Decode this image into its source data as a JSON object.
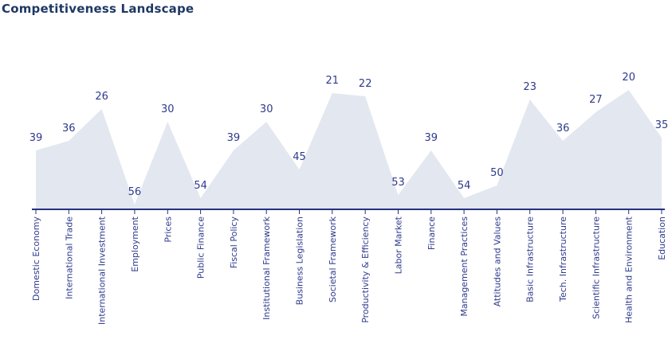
{
  "chart_data": {
    "type": "area",
    "title": "Competitiveness Landscape",
    "categories": [
      "Domestic Economy",
      "International Trade",
      "International Investment",
      "Employment",
      "Prices",
      "Public Finance",
      "Fiscal Policy",
      "Institutional Framework",
      "Business Legislation",
      "Societal Framework",
      "Productivity & Efficiency",
      "Labor Market",
      "Finance",
      "Management Practices",
      "Attitudes and Values",
      "Basic Infrastructure",
      "Tech. Infrastructure",
      "Scientific Infrastructure",
      "Health and Environment",
      "Education"
    ],
    "values": [
      39,
      36,
      26,
      56,
      30,
      54,
      39,
      30,
      45,
      21,
      22,
      53,
      39,
      54,
      50,
      23,
      36,
      27,
      20,
      35
    ],
    "value_labels_shown": true,
    "value_axis": {
      "min": 0,
      "max": 57.5,
      "inverted": true
    },
    "xlabel": "",
    "ylabel": "",
    "legend": "none",
    "grid": false,
    "colors": {
      "background": "#FFFFFF",
      "area_fill": "#E3E7F0",
      "axis": "#26327E",
      "value_label": "#2E3A8C",
      "category_label": "#2E3A8C",
      "title": "#1F3864"
    }
  }
}
